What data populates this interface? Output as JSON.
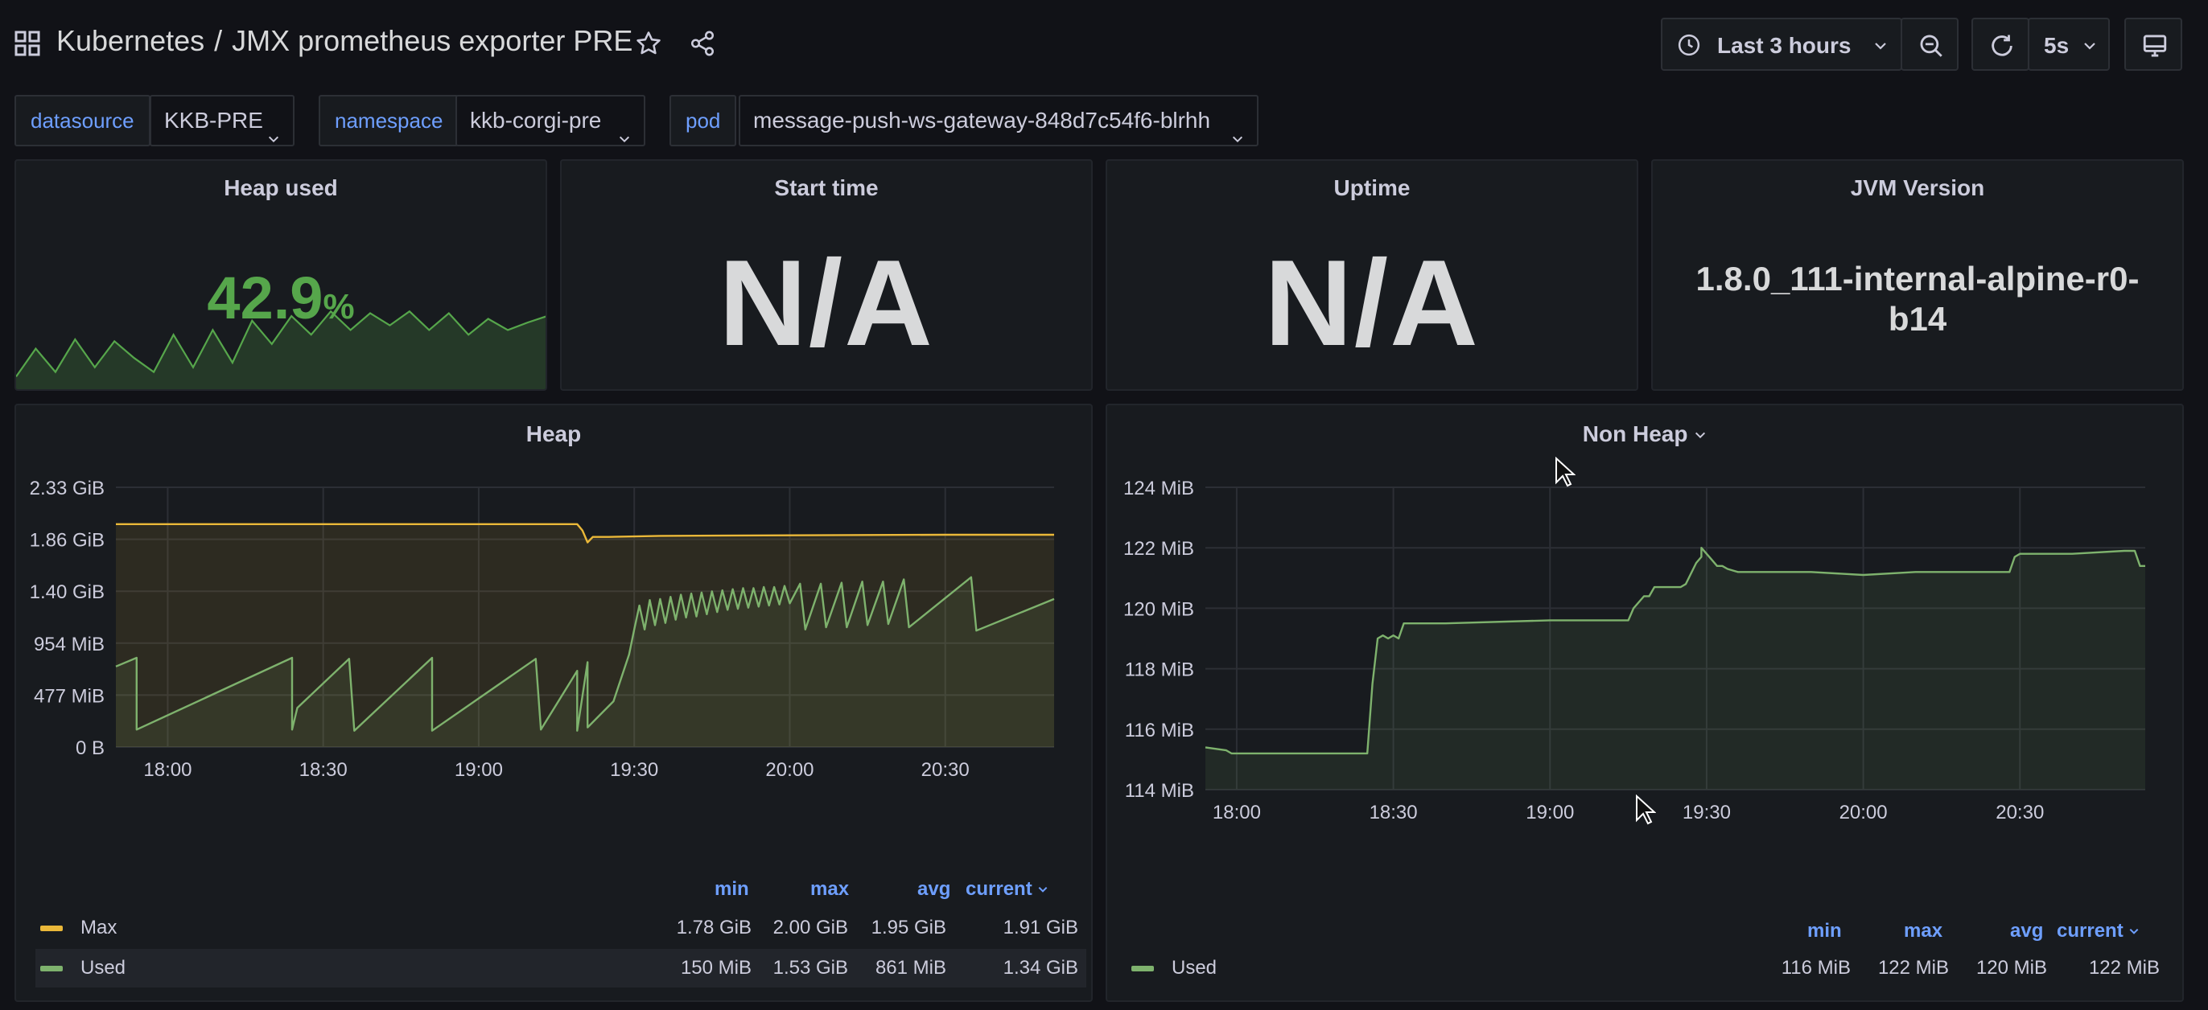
{
  "topbar": {
    "folder": "Kubernetes",
    "separator": "/",
    "dashboard_title": "JMX prometheus exporter PRE",
    "time_range": "Last 3 hours",
    "refresh_interval": "5s"
  },
  "variables": [
    {
      "label": "datasource",
      "value": "KKB-PRE"
    },
    {
      "label": "namespace",
      "value": "kkb-corgi-pre"
    },
    {
      "label": "pod",
      "value": "message-push-ws-gateway-848d7c54f6-blrhh"
    }
  ],
  "stats": {
    "heap_used": {
      "title": "Heap used",
      "value": "42.9",
      "unit": "%"
    },
    "start_time": {
      "title": "Start time",
      "value": "N/A"
    },
    "uptime": {
      "title": "Uptime",
      "value": "N/A"
    },
    "jvm_version": {
      "title": "JVM Version",
      "value": "1.8.0_111-internal-alpine-r0-b14"
    }
  },
  "colors": {
    "max_series": "#eab839",
    "used_series": "#7eb26d",
    "stat_green": "#56a64b",
    "legend_header": "#6e9fff"
  },
  "legend_headers": {
    "min": "min",
    "max": "max",
    "avg": "avg",
    "current": "current"
  },
  "heap_legend": [
    {
      "name": "Max",
      "min": "1.78 GiB",
      "max": "2.00 GiB",
      "avg": "1.95 GiB",
      "current": "1.91 GiB"
    },
    {
      "name": "Used",
      "min": "150 MiB",
      "max": "1.53 GiB",
      "avg": "861 MiB",
      "current": "1.34 GiB"
    }
  ],
  "nonheap_legend": [
    {
      "name": "Used",
      "min": "116 MiB",
      "max": "122 MiB",
      "avg": "120 MiB",
      "current": "122 MiB"
    }
  ],
  "chart_data": [
    {
      "type": "area",
      "title": "Heap",
      "x_ticks": [
        "18:00",
        "18:30",
        "19:00",
        "19:30",
        "20:00",
        "20:30"
      ],
      "y_ticks": [
        "0 B",
        "477 MiB",
        "954 MiB",
        "1.40 GiB",
        "1.86 GiB",
        "2.33 GiB"
      ],
      "y_unit": "MiB",
      "ylim": [
        0,
        2386
      ],
      "x_range": [
        "17:50",
        "20:51"
      ],
      "grid": true,
      "series": [
        {
          "name": "Max",
          "x": [
            "17:50",
            "19:19",
            "19:20",
            "19:21",
            "19:22",
            "19:25",
            "19:35",
            "20:00",
            "20:30",
            "20:51"
          ],
          "values": [
            2048,
            2048,
            1990,
            1880,
            1930,
            1930,
            1940,
            1945,
            1950,
            1950
          ]
        },
        {
          "name": "Used",
          "x": [
            "17:50",
            "17:54",
            "17:54",
            "18:24",
            "18:24",
            "18:25",
            "18:35",
            "18:36",
            "18:51",
            "18:51",
            "19:11",
            "19:12",
            "19:19",
            "19:19",
            "19:21",
            "19:21",
            "19:26",
            "19:29",
            "19:30",
            "19:31",
            "19:32",
            "19:33",
            "19:34",
            "19:35",
            "19:36",
            "19:37",
            "19:38",
            "19:39",
            "19:40",
            "19:41",
            "19:42",
            "19:43",
            "19:44",
            "19:45",
            "19:46",
            "19:47",
            "19:48",
            "19:49",
            "19:50",
            "19:51",
            "19:52",
            "19:53",
            "19:54",
            "19:55",
            "19:56",
            "19:57",
            "19:58",
            "19:59",
            "20:00",
            "20:02",
            "20:03",
            "20:06",
            "20:07",
            "20:10",
            "20:11",
            "20:14",
            "20:15",
            "20:18",
            "20:19",
            "20:22",
            "20:23",
            "20:35",
            "20:36",
            "20:51"
          ],
          "values": [
            740,
            820,
            160,
            820,
            160,
            360,
            810,
            150,
            820,
            150,
            810,
            160,
            700,
            150,
            780,
            180,
            420,
            850,
            1080,
            1300,
            1080,
            1350,
            1120,
            1360,
            1140,
            1380,
            1170,
            1400,
            1190,
            1410,
            1200,
            1420,
            1220,
            1430,
            1240,
            1440,
            1260,
            1450,
            1270,
            1460,
            1280,
            1460,
            1290,
            1470,
            1300,
            1470,
            1310,
            1480,
            1320,
            1500,
            1080,
            1500,
            1100,
            1510,
            1100,
            1520,
            1120,
            1520,
            1130,
            1540,
            1100,
            1560,
            1070,
            1360
          ]
        }
      ]
    },
    {
      "type": "area",
      "title": "Non Heap",
      "x_ticks": [
        "18:00",
        "18:30",
        "19:00",
        "19:30",
        "20:00",
        "20:30"
      ],
      "y_ticks": [
        "114 MiB",
        "116 MiB",
        "118 MiB",
        "120 MiB",
        "122 MiB",
        "124 MiB"
      ],
      "y_unit": "MiB",
      "ylim": [
        114,
        124
      ],
      "x_range": [
        "17:54",
        "20:54"
      ],
      "grid": true,
      "series": [
        {
          "name": "Used",
          "x": [
            "17:54",
            "17:58",
            "17:59",
            "18:25",
            "18:26",
            "18:27",
            "18:28",
            "18:29",
            "18:30",
            "18:31",
            "18:32",
            "18:33",
            "18:40",
            "19:00",
            "19:15",
            "19:16",
            "19:17",
            "19:18",
            "19:19",
            "19:20",
            "19:25",
            "19:26",
            "19:28",
            "19:29",
            "19:29",
            "19:30",
            "19:31",
            "19:32",
            "19:33",
            "19:34",
            "19:36",
            "19:40",
            "19:50",
            "20:00",
            "20:10",
            "20:20",
            "20:28",
            "20:29",
            "20:30",
            "20:31",
            "20:40",
            "20:50",
            "20:52",
            "20:53",
            "20:54"
          ],
          "values": [
            115.4,
            115.3,
            115.2,
            115.2,
            117.5,
            119.0,
            119.1,
            119.0,
            119.1,
            119.0,
            119.5,
            119.5,
            119.5,
            119.6,
            119.6,
            120.0,
            120.2,
            120.4,
            120.4,
            120.7,
            120.7,
            120.8,
            121.5,
            121.7,
            122.0,
            121.8,
            121.6,
            121.4,
            121.4,
            121.3,
            121.2,
            121.2,
            121.2,
            121.1,
            121.2,
            121.2,
            121.2,
            121.7,
            121.8,
            121.8,
            121.8,
            121.9,
            121.9,
            121.4,
            121.4
          ]
        }
      ]
    }
  ],
  "heap_used_sparkline": [
    0.1,
    0.4,
    0.15,
    0.5,
    0.2,
    0.48,
    0.3,
    0.15,
    0.55,
    0.2,
    0.6,
    0.25,
    0.7,
    0.45,
    0.75,
    0.55,
    0.8,
    0.6,
    0.78,
    0.65,
    0.8,
    0.6,
    0.78,
    0.55,
    0.72,
    0.6,
    0.68,
    0.75
  ]
}
